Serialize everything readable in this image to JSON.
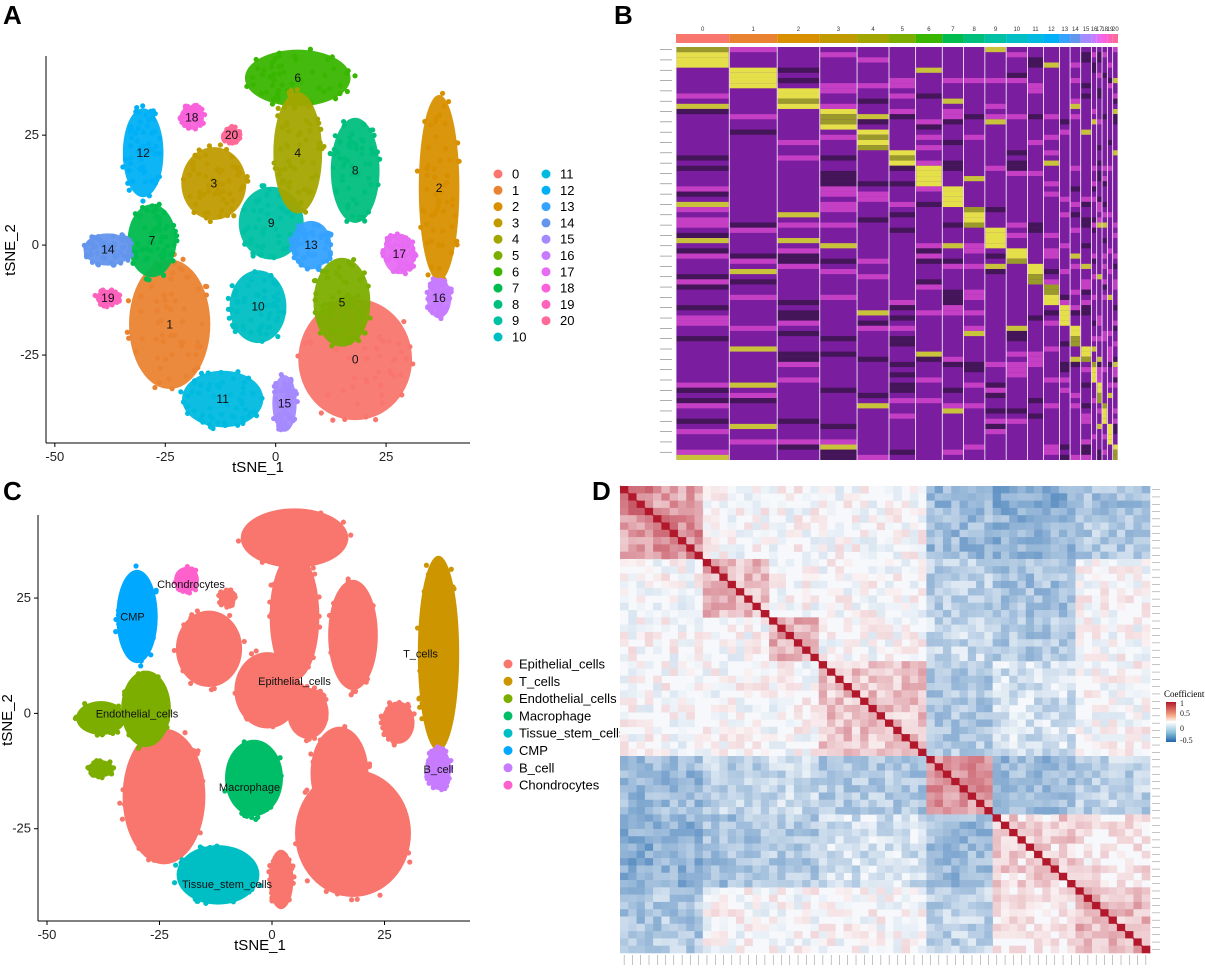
{
  "panels": {
    "A": "A",
    "B": "B",
    "C": "C",
    "D": "D"
  },
  "chart_data": [
    {
      "panel": "A",
      "type": "scatter",
      "title": "",
      "xlabel": "tSNE_1",
      "ylabel": "tSNE_2",
      "xlim": [
        -52,
        44
      ],
      "ylim": [
        -45,
        43
      ],
      "xticks": [
        -50,
        -25,
        0,
        25
      ],
      "yticks": [
        -25,
        0,
        25
      ],
      "legend_position": "right",
      "legend": [
        {
          "label": "0",
          "color": "#F8766D"
        },
        {
          "label": "1",
          "color": "#EA8331"
        },
        {
          "label": "2",
          "color": "#D89000"
        },
        {
          "label": "3",
          "color": "#C09B00"
        },
        {
          "label": "4",
          "color": "#A3A500"
        },
        {
          "label": "5",
          "color": "#7CAE00"
        },
        {
          "label": "6",
          "color": "#39B600"
        },
        {
          "label": "7",
          "color": "#00BB4E"
        },
        {
          "label": "8",
          "color": "#00BF7D"
        },
        {
          "label": "9",
          "color": "#00C1A3"
        },
        {
          "label": "10",
          "color": "#00BFC4"
        },
        {
          "label": "11",
          "color": "#00BAE0"
        },
        {
          "label": "12",
          "color": "#00B0F6"
        },
        {
          "label": "13",
          "color": "#35A2FF"
        },
        {
          "label": "14",
          "color": "#6495ED"
        },
        {
          "label": "15",
          "color": "#A58AFF"
        },
        {
          "label": "16",
          "color": "#C77CFF"
        },
        {
          "label": "17",
          "color": "#E76BF3"
        },
        {
          "label": "18",
          "color": "#FA62DB"
        },
        {
          "label": "19",
          "color": "#FF62BC"
        },
        {
          "label": "20",
          "color": "#FF6A98"
        }
      ],
      "clusters": [
        {
          "label": "0",
          "x": 18,
          "y": -26,
          "rx": 14,
          "ry": 15
        },
        {
          "label": "1",
          "x": -24,
          "y": -18,
          "rx": 10,
          "ry": 16
        },
        {
          "label": "2",
          "x": 37,
          "y": 13,
          "rx": 5,
          "ry": 23
        },
        {
          "label": "3",
          "x": -14,
          "y": 14,
          "rx": 8,
          "ry": 9
        },
        {
          "label": "4",
          "x": 5,
          "y": 21,
          "rx": 6,
          "ry": 15
        },
        {
          "label": "5",
          "x": 15,
          "y": -13,
          "rx": 7,
          "ry": 11
        },
        {
          "label": "6",
          "x": 5,
          "y": 38,
          "rx": 13,
          "ry": 7
        },
        {
          "label": "7",
          "x": -28,
          "y": 1,
          "rx": 6,
          "ry": 9
        },
        {
          "label": "8",
          "x": 18,
          "y": 17,
          "rx": 6,
          "ry": 13
        },
        {
          "label": "9",
          "x": -1,
          "y": 5,
          "rx": 8,
          "ry": 9
        },
        {
          "label": "10",
          "x": -4,
          "y": -14,
          "rx": 7,
          "ry": 9
        },
        {
          "label": "11",
          "x": -12,
          "y": -35,
          "rx": 10,
          "ry": 7
        },
        {
          "label": "12",
          "x": -30,
          "y": 21,
          "rx": 5,
          "ry": 11
        },
        {
          "label": "13",
          "x": 8,
          "y": 0,
          "rx": 5,
          "ry": 6
        },
        {
          "label": "14",
          "x": -38,
          "y": -1,
          "rx": 6,
          "ry": 4
        },
        {
          "label": "15",
          "x": 2,
          "y": -36,
          "rx": 3,
          "ry": 7
        },
        {
          "label": "16",
          "x": 37,
          "y": -12,
          "rx": 3,
          "ry": 5
        },
        {
          "label": "17",
          "x": 28,
          "y": -2,
          "rx": 4,
          "ry": 5
        },
        {
          "label": "18",
          "x": -19,
          "y": 29,
          "rx": 3,
          "ry": 3
        },
        {
          "label": "19",
          "x": -38,
          "y": -12,
          "rx": 3,
          "ry": 2
        },
        {
          "label": "20",
          "x": -10,
          "y": 25,
          "rx": 2,
          "ry": 2
        }
      ]
    },
    {
      "panel": "B",
      "type": "heatmap",
      "title": "",
      "column_groups": [
        "0",
        "1",
        "2",
        "3",
        "4",
        "5",
        "6",
        "7",
        "8",
        "9",
        "10",
        "11",
        "12",
        "13",
        "14",
        "15",
        "16",
        "17",
        "18",
        "19",
        "20"
      ],
      "group_widths": [
        10,
        9,
        8,
        7,
        6,
        5,
        5,
        4,
        4,
        4,
        4,
        3,
        3,
        2,
        2,
        2,
        1,
        1,
        1,
        1,
        1
      ],
      "group_colors": [
        "#F8766D",
        "#EA8331",
        "#D89000",
        "#C09B00",
        "#A3A500",
        "#7CAE00",
        "#39B600",
        "#00BB4E",
        "#00BF7D",
        "#00C1A3",
        "#00BFC4",
        "#00BAE0",
        "#00B0F6",
        "#35A2FF",
        "#6495ED",
        "#A58AFF",
        "#C77CFF",
        "#E76BF3",
        "#FA62DB",
        "#FF62BC",
        "#FF6A98"
      ],
      "color_scale": [
        "#FF00FF",
        "#000000",
        "#FFFF00"
      ],
      "legend": "none"
    },
    {
      "panel": "C",
      "type": "scatter",
      "title": "",
      "xlabel": "tSNE_1",
      "ylabel": "tSNE_2",
      "xlim": [
        -52,
        44
      ],
      "ylim": [
        -45,
        43
      ],
      "xticks": [
        -50,
        -25,
        0,
        25
      ],
      "yticks": [
        -25,
        0,
        25
      ],
      "legend_position": "right",
      "legend": [
        {
          "label": "Epithelial_cells",
          "color": "#F8766D"
        },
        {
          "label": "T_cells",
          "color": "#CD9600"
        },
        {
          "label": "Endothelial_cells",
          "color": "#7CAE00"
        },
        {
          "label": "Macrophage",
          "color": "#00BE67"
        },
        {
          "label": "Tissue_stem_cells",
          "color": "#00BFC4"
        },
        {
          "label": "CMP",
          "color": "#00A9FF"
        },
        {
          "label": "B_cell",
          "color": "#C77CFF"
        },
        {
          "label": "Chondrocytes",
          "color": "#FF61CC"
        }
      ],
      "clusters": [
        {
          "label": "Epithelial_cells",
          "x": 5,
          "y": 7
        },
        {
          "label": "T_cells",
          "x": 33,
          "y": 13
        },
        {
          "label": "Endothelial_cells",
          "x": -30,
          "y": 0
        },
        {
          "label": "Macrophage",
          "x": -5,
          "y": -16
        },
        {
          "label": "Tissue_stem_cells",
          "x": -10,
          "y": -37
        },
        {
          "label": "CMP",
          "x": -31,
          "y": 21
        },
        {
          "label": "B_cell",
          "x": 37,
          "y": -12
        },
        {
          "label": "Chondrocytes",
          "x": -18,
          "y": 28
        }
      ]
    },
    {
      "panel": "D",
      "type": "heatmap",
      "title": "",
      "colorbar_title": "Coefficient",
      "colorbar_ticks": [
        "1",
        "0.5",
        "0",
        "-0.5"
      ],
      "color_scale": [
        "#2166AC",
        "#FFFFFF",
        "#B2182B"
      ],
      "diagonal": 1
    }
  ]
}
